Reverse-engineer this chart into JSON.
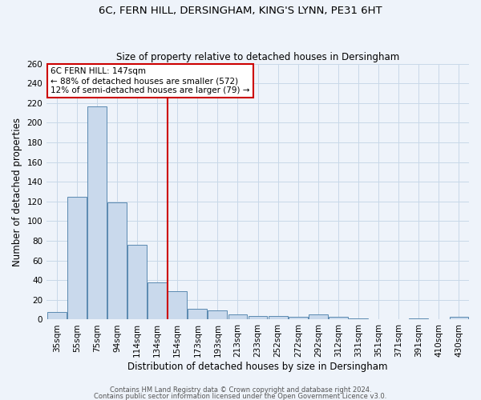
{
  "title_line1": "6C, FERN HILL, DERSINGHAM, KING'S LYNN, PE31 6HT",
  "title_line2": "Size of property relative to detached houses in Dersingham",
  "xlabel": "Distribution of detached houses by size in Dersingham",
  "ylabel": "Number of detached properties",
  "categories": [
    "35sqm",
    "55sqm",
    "75sqm",
    "94sqm",
    "114sqm",
    "134sqm",
    "154sqm",
    "173sqm",
    "193sqm",
    "213sqm",
    "233sqm",
    "252sqm",
    "272sqm",
    "292sqm",
    "312sqm",
    "331sqm",
    "351sqm",
    "371sqm",
    "391sqm",
    "410sqm",
    "430sqm"
  ],
  "values": [
    8,
    125,
    217,
    119,
    76,
    38,
    29,
    11,
    9,
    5,
    4,
    4,
    3,
    5,
    3,
    1,
    0,
    0,
    1,
    0,
    3
  ],
  "bar_color": "#c9d9ec",
  "bar_edge_color": "#5a8ab0",
  "grid_color": "#c8d8e8",
  "background_color": "#eef3fa",
  "annotation_box_color": "#ffffff",
  "annotation_border_color": "#cc0000",
  "vline_color": "#cc0000",
  "vline_x_index": 5.5,
  "annotation_text_line1": "6C FERN HILL: 147sqm",
  "annotation_text_line2": "← 88% of detached houses are smaller (572)",
  "annotation_text_line3": "12% of semi-detached houses are larger (79) →",
  "footer_line1": "Contains HM Land Registry data © Crown copyright and database right 2024.",
  "footer_line2": "Contains public sector information licensed under the Open Government Licence v3.0.",
  "ylim": [
    0,
    260
  ],
  "yticks": [
    0,
    20,
    40,
    60,
    80,
    100,
    120,
    140,
    160,
    180,
    200,
    220,
    240,
    260
  ],
  "title1_fontsize": 9.5,
  "title2_fontsize": 8.5,
  "xlabel_fontsize": 8.5,
  "ylabel_fontsize": 8.5,
  "tick_fontsize": 7.5,
  "annot_fontsize": 7.5,
  "footer_fontsize": 6.0
}
